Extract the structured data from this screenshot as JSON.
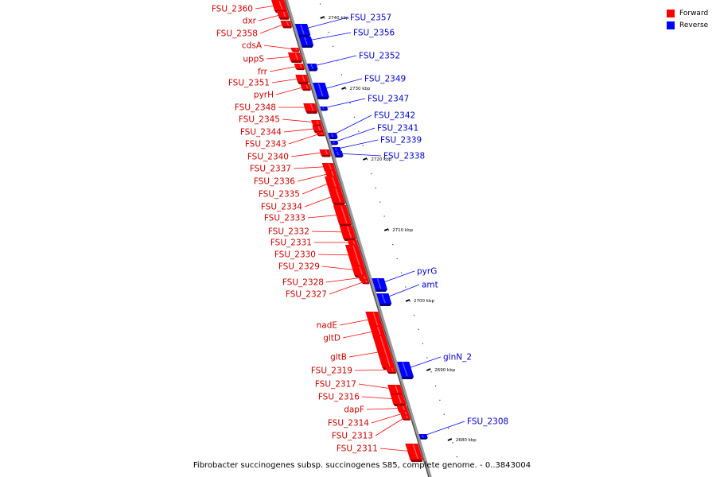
{
  "legend": {
    "forward_label": "Forward",
    "reverse_label": "Reverse",
    "forward_color": "#ff0000",
    "reverse_color": "#0000ff"
  },
  "caption": "Fibrobacter succinogenes subsp. succinogenes S85, complete genome. - 0..3843004",
  "ticks": [
    "2740 kbp",
    "2730 kbp",
    "2720 kbp",
    "2710 kbp",
    "2700 kbp",
    "2690 kbp",
    "2680 kbp"
  ],
  "forward_genes": [
    "FSU_2360",
    "dxr",
    "FSU_2358",
    "cdsA",
    "uppS",
    "frr",
    "FSU_2351",
    "pyrH",
    "FSU_2348",
    "FSU_2345",
    "FSU_2344",
    "FSU_2343",
    "FSU_2340",
    "FSU_2337",
    "FSU_2336",
    "FSU_2335",
    "FSU_2334",
    "FSU_2333",
    "FSU_2332",
    "FSU_2331",
    "FSU_2330",
    "FSU_2329",
    "FSU_2328",
    "FSU_2327",
    "nadE",
    "gltD",
    "gltB",
    "FSU_2319",
    "FSU_2317",
    "FSU_2316",
    "dapF",
    "FSU_2314",
    "FSU_2313",
    "FSU_2311"
  ],
  "reverse_genes": [
    "FSU_2357",
    "FSU_2356",
    "FSU_2352",
    "FSU_2349",
    "FSU_2347",
    "FSU_2342",
    "FSU_2341",
    "FSU_2339",
    "FSU_2338",
    "pyrG",
    "amt",
    "glnN_2",
    "FSU_2308"
  ]
}
